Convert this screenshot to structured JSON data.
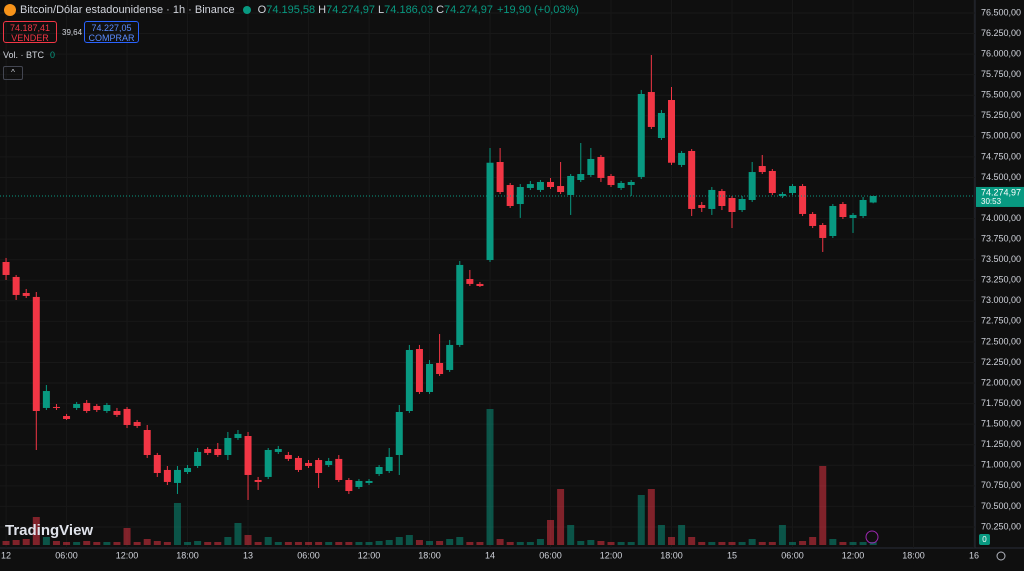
{
  "chart_data": {
    "type": "candlestick",
    "title": "Bitcoin/Dólar estadounidense · 1h · Binance",
    "ohlc_header": {
      "o_key": "O",
      "o": "74.195,58",
      "h_key": "H",
      "h": "74.274,97",
      "l_key": "L",
      "l": "74.186,03",
      "c_key": "C",
      "c": "74.274,97",
      "change": "+19,90 (+0,03%)"
    },
    "sell": {
      "price": "74.187,41",
      "label": "VENDER"
    },
    "spread": "39,64",
    "buy": {
      "price": "74.227,05",
      "label": "COMPRAR"
    },
    "volume_label": "Vol. · BTC",
    "volume_value": "0",
    "collapse": "^",
    "logo": "TradingView",
    "volume_badge": "0",
    "up_color": "#089981",
    "down_color": "#f23645",
    "open": [
      73472,
      73290,
      73095,
      73047,
      71697,
      71709,
      71599,
      71697,
      71758,
      71721,
      71660,
      71660,
      71685,
      71526,
      71429,
      71125,
      70943,
      70785,
      70918,
      70991,
      71198,
      71198,
      71125,
      71332,
      71356,
      70821,
      70858,
      71162,
      71125,
      71089,
      71028,
      71064,
      71003,
      71077,
      70821,
      70736,
      70785,
      70894,
      70930,
      71125,
      71660,
      72414,
      71891,
      72244,
      72159,
      72463,
      73265,
      73205,
      73496,
      74688,
      74408,
      74177,
      74372,
      74348,
      74445,
      74396,
      74287,
      74469,
      74530,
      74749,
      74518,
      74372,
      74408,
      74506,
      75539,
      74980,
      75442,
      74652,
      74822,
      74165,
      74117,
      74335,
      74250,
      74104,
      74226,
      74639,
      74579,
      74275,
      74311,
      74396,
      74056,
      73922,
      73788,
      74177,
      74007,
      74031,
      74195.58
    ],
    "high": [
      73521,
      73314,
      73144,
      73107,
      71976,
      71745,
      71624,
      71770,
      71794,
      71745,
      71758,
      71697,
      71709,
      71551,
      71490,
      71150,
      70991,
      70991,
      71003,
      71210,
      71222,
      71271,
      71405,
      71429,
      71405,
      70858,
      71210,
      71235,
      71162,
      71113,
      71064,
      71089,
      71089,
      71125,
      70845,
      70833,
      70833,
      71003,
      71210,
      71733,
      72463,
      72463,
      72280,
      72596,
      72524,
      73484,
      73375,
      73229,
      74858,
      74858,
      74433,
      74420,
      74457,
      74469,
      74494,
      74688,
      74542,
      74919,
      74858,
      74773,
      74542,
      74457,
      74469,
      75564,
      75989,
      75320,
      75600,
      74822,
      74846,
      74202,
      74384,
      74360,
      74275,
      74275,
      74688,
      74773,
      74603,
      74323,
      74420,
      74420,
      74080,
      73946,
      74177,
      74202,
      74068,
      74263,
      74274.97
    ],
    "low": [
      73253,
      73010,
      73034,
      71186,
      71672,
      71672,
      71551,
      71672,
      71636,
      71648,
      71636,
      71587,
      71453,
      71453,
      71089,
      70858,
      70760,
      70651,
      70894,
      70967,
      71125,
      71101,
      71064,
      71308,
      70578,
      70700,
      70833,
      71137,
      71052,
      70918,
      70967,
      70724,
      70979,
      70797,
      70651,
      70712,
      70760,
      70870,
      70906,
      70882,
      71636,
      71867,
      71867,
      72086,
      72135,
      72439,
      73180,
      73168,
      73472,
      74299,
      74129,
      74008,
      74348,
      74323,
      74360,
      74299,
      74044,
      74445,
      74506,
      74445,
      74384,
      74348,
      74275,
      74481,
      75089,
      74956,
      74652,
      74627,
      74031,
      74080,
      74044,
      74104,
      73885,
      74080,
      74202,
      74542,
      74287,
      74250,
      74287,
      74031,
      73885,
      73594,
      73764,
      73995,
      73825,
      74007,
      74186.03
    ],
    "close": [
      73314,
      73071,
      73059,
      71660,
      71903,
      71697,
      71563,
      71745,
      71660,
      71672,
      71733,
      71612,
      71490,
      71478,
      71125,
      70906,
      70797,
      70943,
      70967,
      71162,
      71150,
      71125,
      71332,
      71381,
      70882,
      70797,
      71186,
      71198,
      71077,
      70943,
      70991,
      70906,
      71052,
      70821,
      70687,
      70809,
      70809,
      70979,
      71101,
      71648,
      72402,
      71891,
      72232,
      72110,
      72463,
      73436,
      73205,
      73180,
      74679,
      74323,
      74153,
      74384,
      74420,
      74445,
      74384,
      74323,
      74518,
      74542,
      74725,
      74494,
      74408,
      74433,
      74445,
      75515,
      75114,
      75284,
      74679,
      74798,
      74117,
      74129,
      74348,
      74153,
      74080,
      74238,
      74566,
      74566,
      74311,
      74299,
      74396,
      74056,
      73910,
      73764,
      74153,
      74019,
      74044,
      74226,
      74274.97
    ],
    "volume": [
      80,
      100,
      120,
      560,
      160,
      80,
      60,
      60,
      80,
      60,
      60,
      60,
      340,
      60,
      120,
      80,
      60,
      840,
      60,
      80,
      60,
      60,
      160,
      440,
      200,
      60,
      160,
      60,
      60,
      60,
      60,
      60,
      60,
      60,
      60,
      60,
      60,
      80,
      100,
      160,
      200,
      100,
      80,
      80,
      120,
      160,
      60,
      60,
      2720,
      120,
      60,
      60,
      60,
      120,
      500,
      1120,
      400,
      80,
      100,
      80,
      60,
      60,
      60,
      1000,
      1120,
      400,
      160,
      400,
      160,
      60,
      60,
      60,
      60,
      60,
      120,
      60,
      60,
      400,
      60,
      80,
      160,
      1580,
      120,
      60,
      60,
      60,
      60
    ],
    "last_price": {
      "value": 74274.97,
      "label": "74.274,97"
    },
    "countdown": "30:53",
    "ylim": [
      69994,
      76658
    ],
    "yticks": [
      {
        "value": 76500,
        "label": "76.500,00"
      },
      {
        "value": 76250,
        "label": "76.250,00"
      },
      {
        "value": 76000,
        "label": "76.000,00"
      },
      {
        "value": 75750,
        "label": "75.750,00"
      },
      {
        "value": 75500,
        "label": "75.500,00"
      },
      {
        "value": 75250,
        "label": "75.250,00"
      },
      {
        "value": 75000,
        "label": "75.000,00"
      },
      {
        "value": 74750,
        "label": "74.750,00"
      },
      {
        "value": 74500,
        "label": "74.500,00"
      },
      {
        "value": 74000,
        "label": "74.000,00"
      },
      {
        "value": 73750,
        "label": "73.750,00"
      },
      {
        "value": 73500,
        "label": "73.500,00"
      },
      {
        "value": 73250,
        "label": "73.250,00"
      },
      {
        "value": 73000,
        "label": "73.000,00"
      },
      {
        "value": 72750,
        "label": "72.750,00"
      },
      {
        "value": 72500,
        "label": "72.500,00"
      },
      {
        "value": 72250,
        "label": "72.250,00"
      },
      {
        "value": 72000,
        "label": "72.000,00"
      },
      {
        "value": 71750,
        "label": "71.750,00"
      },
      {
        "value": 71500,
        "label": "71.500,00"
      },
      {
        "value": 71250,
        "label": "71.250,00"
      },
      {
        "value": 71000,
        "label": "71.000,00"
      },
      {
        "value": 70750,
        "label": "70.750,00"
      },
      {
        "value": 70500,
        "label": "70.500,00"
      },
      {
        "value": 70250,
        "label": "70.250,00"
      }
    ],
    "xlim": [
      -0.6,
      96.1
    ],
    "xticks": [
      {
        "value": 0,
        "label": "12"
      },
      {
        "value": 6,
        "label": "06:00"
      },
      {
        "value": 12,
        "label": "12:00"
      },
      {
        "value": 18,
        "label": "18:00"
      },
      {
        "value": 24,
        "label": "13"
      },
      {
        "value": 30,
        "label": "06:00"
      },
      {
        "value": 36,
        "label": "12:00"
      },
      {
        "value": 42,
        "label": "18:00"
      },
      {
        "value": 48,
        "label": "14"
      },
      {
        "value": 54,
        "label": "06:00"
      },
      {
        "value": 60,
        "label": "12:00"
      },
      {
        "value": 66,
        "label": "18:00"
      },
      {
        "value": 72,
        "label": "15"
      },
      {
        "value": 78,
        "label": "06:00"
      },
      {
        "value": 84,
        "label": "12:00"
      },
      {
        "value": 90,
        "label": "18:00"
      },
      {
        "value": 96,
        "label": "16"
      }
    ],
    "grid": true
  }
}
